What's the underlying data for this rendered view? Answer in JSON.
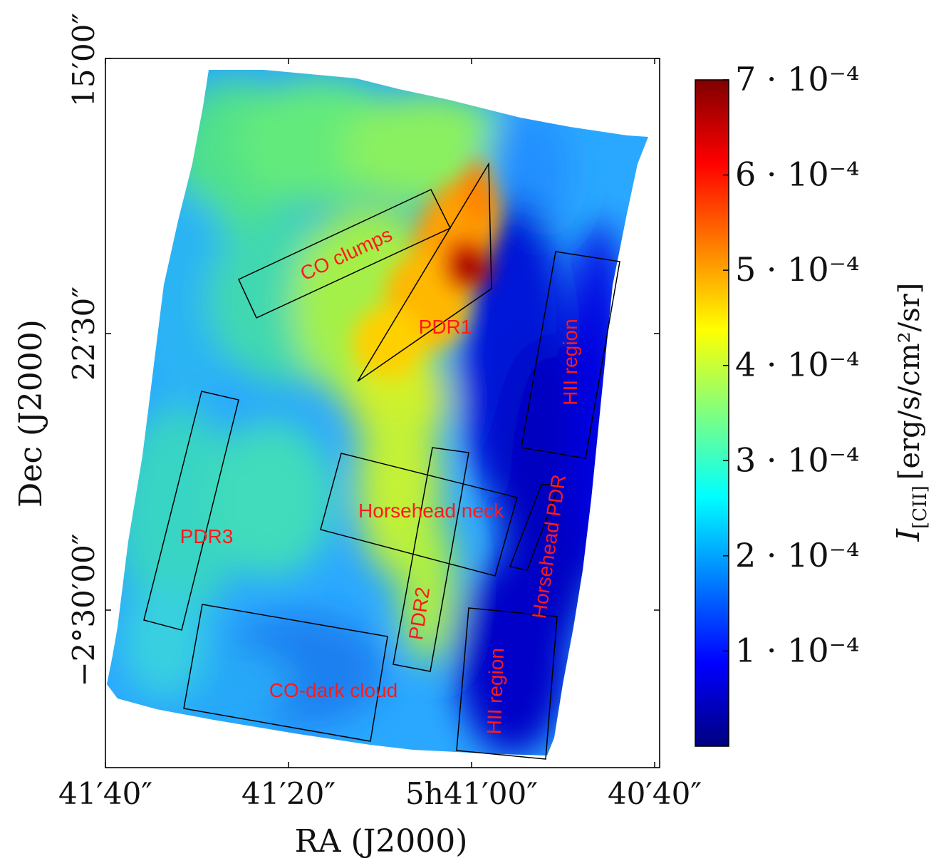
{
  "chart_data": {
    "type": "heatmap",
    "title": "",
    "xlabel": "RA (J2000)",
    "ylabel": "Dec (J2000)",
    "x_tick_labels": [
      "41′40″",
      "41′20″",
      "5h41′00″",
      "40′40″"
    ],
    "y_tick_labels": [
      "15′00″",
      "22′30″",
      "−2°30′00″"
    ],
    "colorbar": {
      "label_main": "I",
      "label_sub": "[CII]",
      "label_units": "[erg/s/cm²/sr]",
      "min": 0.0,
      "max": 0.0007,
      "ticks": [
        {
          "value": 0.0007,
          "label": "7 · 10⁻⁴"
        },
        {
          "value": 0.0006,
          "label": "6 · 10⁻⁴"
        },
        {
          "value": 0.0005,
          "label": "5 · 10⁻⁴"
        },
        {
          "value": 0.0004,
          "label": "4 · 10⁻⁴"
        },
        {
          "value": 0.0003,
          "label": "3 · 10⁻⁴"
        },
        {
          "value": 0.0002,
          "label": "2 · 10⁻⁴"
        },
        {
          "value": 0.0001,
          "label": "1 · 10⁻⁴"
        }
      ],
      "colormap": [
        "#00007f",
        "#0000ff",
        "#007fff",
        "#00ffff",
        "#7fff7f",
        "#ffff00",
        "#ff7f00",
        "#ff0000",
        "#7f0000"
      ]
    },
    "regions": [
      {
        "name": "CO clumps",
        "label": "CO clumps"
      },
      {
        "name": "PDR1",
        "label": "PDR1"
      },
      {
        "name": "HII region (north)",
        "label": "HII region"
      },
      {
        "name": "PDR3",
        "label": "PDR3"
      },
      {
        "name": "Horsehead neck",
        "label": "Horsehead neck"
      },
      {
        "name": "PDR2",
        "label": "PDR2"
      },
      {
        "name": "Horsehead PDR",
        "label": "Horsehead PDR"
      },
      {
        "name": "CO-dark cloud",
        "label": "CO-dark cloud"
      },
      {
        "name": "HII region (south)",
        "label": "HII region"
      }
    ]
  }
}
